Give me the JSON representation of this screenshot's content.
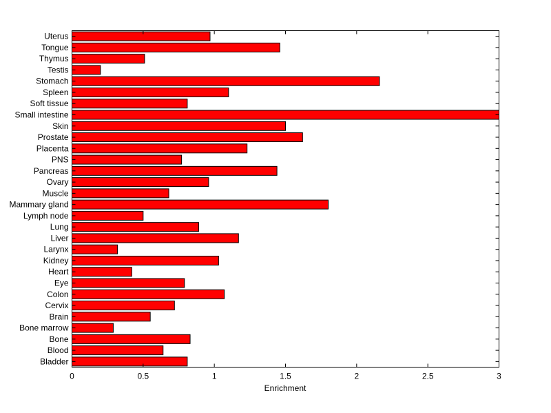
{
  "chart_data": {
    "type": "bar",
    "orientation": "horizontal",
    "title": "",
    "xlabel": "Enrichment",
    "ylabel": "",
    "xlim": [
      0,
      3
    ],
    "xticks": [
      "0",
      "0.5",
      "1",
      "1.5",
      "2",
      "2.5",
      "3"
    ],
    "grid": false,
    "bar_color": "#ff0000",
    "edge_color": "#000000",
    "categories": [
      "Uterus",
      "Tongue",
      "Thymus",
      "Testis",
      "Stomach",
      "Spleen",
      "Soft tissue",
      "Small intestine",
      "Skin",
      "Prostate",
      "Placenta",
      "PNS",
      "Pancreas",
      "Ovary",
      "Muscle",
      "Mammary gland",
      "Lymph node",
      "Lung",
      "Liver",
      "Larynx",
      "Kidney",
      "Heart",
      "Eye",
      "Colon",
      "Cervix",
      "Brain",
      "Bone marrow",
      "Bone",
      "Blood",
      "Bladder"
    ],
    "values": [
      0.97,
      1.46,
      0.51,
      0.2,
      2.16,
      1.1,
      0.81,
      3.0,
      1.5,
      1.62,
      1.23,
      0.77,
      1.44,
      0.96,
      0.68,
      1.8,
      0.5,
      0.89,
      1.17,
      0.32,
      1.03,
      0.42,
      0.79,
      1.07,
      0.72,
      0.55,
      0.29,
      0.83,
      0.64,
      0.81
    ]
  }
}
